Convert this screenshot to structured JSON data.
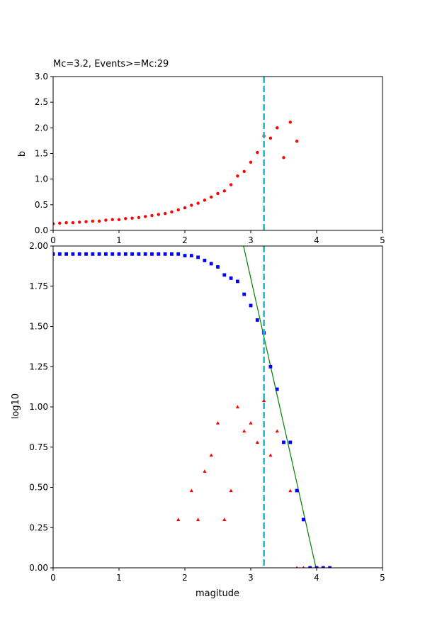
{
  "chart_data": [
    {
      "type": "scatter",
      "title": "Mc=3.2, Events>=Mc:29",
      "xlabel": "",
      "ylabel": "b",
      "xlim": [
        0,
        5
      ],
      "ylim": [
        0,
        3
      ],
      "xticks": [
        "0",
        "1",
        "2",
        "3",
        "4",
        "5"
      ],
      "yticks": [
        "0.0",
        "0.5",
        "1.0",
        "1.5",
        "2.0",
        "2.5",
        "3.0"
      ],
      "grid": false,
      "marker_color": "#ff0000",
      "mc_line_color": "#17becf",
      "mc": 3.2,
      "series": [
        {
          "marker": "circle",
          "x": [
            0.0,
            0.1,
            0.2,
            0.3,
            0.4,
            0.5,
            0.6,
            0.7,
            0.8,
            0.9,
            1.0,
            1.1,
            1.2,
            1.3,
            1.4,
            1.5,
            1.6,
            1.7,
            1.8,
            1.9,
            2.0,
            2.1,
            2.2,
            2.3,
            2.4,
            2.5,
            2.6,
            2.7,
            2.8,
            2.9,
            3.0,
            3.1,
            3.2,
            3.3,
            3.4,
            3.5,
            3.6,
            3.7
          ],
          "y": [
            0.13,
            0.14,
            0.15,
            0.15,
            0.16,
            0.17,
            0.18,
            0.18,
            0.2,
            0.21,
            0.21,
            0.23,
            0.24,
            0.25,
            0.27,
            0.29,
            0.31,
            0.33,
            0.36,
            0.4,
            0.44,
            0.49,
            0.53,
            0.59,
            0.65,
            0.72,
            0.77,
            0.89,
            1.06,
            1.15,
            1.33,
            1.52,
            1.84,
            1.8,
            2.0,
            1.42,
            2.11,
            1.74
          ]
        }
      ]
    },
    {
      "type": "scatter",
      "title": "",
      "xlabel": "magitude",
      "ylabel": "log10",
      "xlim": [
        0,
        5
      ],
      "ylim": [
        0,
        2
      ],
      "xticks": [
        "0",
        "1",
        "2",
        "3",
        "4",
        "5"
      ],
      "yticks": [
        "0.00",
        "0.25",
        "0.50",
        "0.75",
        "1.00",
        "1.25",
        "1.50",
        "1.75",
        "2.00"
      ],
      "grid": false,
      "mc": 3.2,
      "mc_line_color": "#17becf",
      "fit_line": {
        "color": "#008000",
        "x": [
          2.89,
          3.99
        ],
        "y": [
          2.0,
          0.0
        ]
      },
      "series": [
        {
          "marker": "square",
          "color": "#0000ff",
          "x": [
            0.0,
            0.1,
            0.2,
            0.3,
            0.4,
            0.5,
            0.6,
            0.7,
            0.8,
            0.9,
            1.0,
            1.1,
            1.2,
            1.3,
            1.4,
            1.5,
            1.6,
            1.7,
            1.8,
            1.9,
            2.0,
            2.1,
            2.2,
            2.3,
            2.4,
            2.5,
            2.6,
            2.7,
            2.8,
            2.9,
            3.0,
            3.1,
            3.2,
            3.3,
            3.4,
            3.5,
            3.6,
            3.7,
            3.8,
            3.9,
            4.0,
            4.1,
            4.2
          ],
          "y": [
            1.95,
            1.95,
            1.95,
            1.95,
            1.95,
            1.95,
            1.95,
            1.95,
            1.95,
            1.95,
            1.95,
            1.95,
            1.95,
            1.95,
            1.95,
            1.95,
            1.95,
            1.95,
            1.95,
            1.95,
            1.94,
            1.94,
            1.93,
            1.91,
            1.89,
            1.87,
            1.82,
            1.8,
            1.78,
            1.7,
            1.63,
            1.54,
            1.46,
            1.25,
            1.11,
            0.78,
            0.78,
            0.48,
            0.3,
            0.0,
            0.0,
            0.0,
            0.0
          ]
        },
        {
          "marker": "triangle",
          "color": "#ff0000",
          "x": [
            1.9,
            2.1,
            2.2,
            2.3,
            2.4,
            2.5,
            2.6,
            2.7,
            2.8,
            2.9,
            3.0,
            3.1,
            3.2,
            3.3,
            3.4,
            3.6,
            3.7,
            3.8
          ],
          "y": [
            0.3,
            0.48,
            0.3,
            0.6,
            0.7,
            0.9,
            0.3,
            0.48,
            1.0,
            0.85,
            0.9,
            0.78,
            1.04,
            0.7,
            0.85,
            0.48,
            0.0,
            0.0
          ]
        }
      ]
    }
  ]
}
